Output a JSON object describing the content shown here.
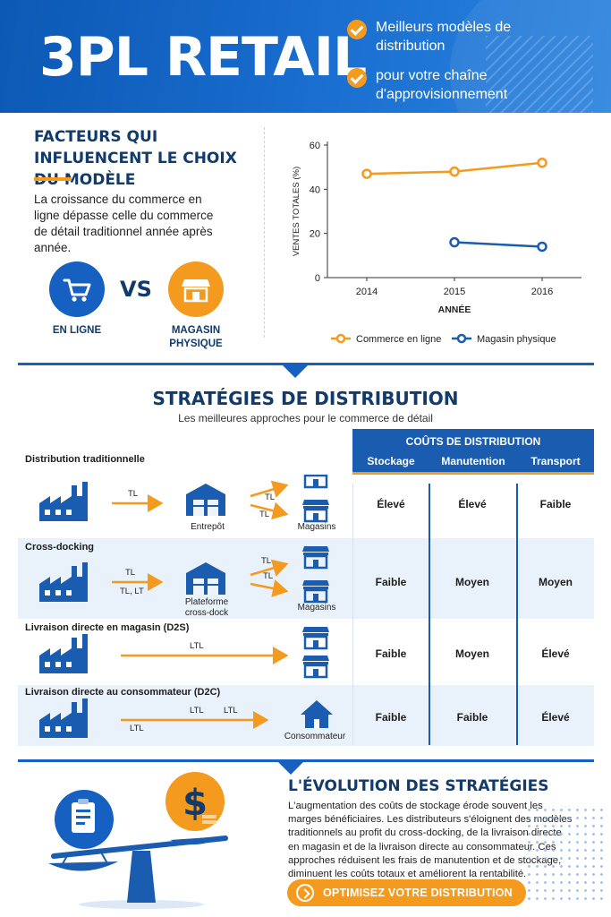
{
  "header": {
    "title": "3PL RETAIL",
    "bullets": [
      "Meilleurs modèles de distribution",
      "pour votre chaîne d'approvisionnement"
    ]
  },
  "factors": {
    "title": "FACTEURS QUI INFLUENCENT LE CHOIX DU MODÈLE",
    "text": "La croissance du commerce en ligne dépasse celle du commerce de détail traditionnel année après année.",
    "vs": "VS",
    "online_label": "EN LIGNE",
    "store_label": "MAGASIN PHYSIQUE",
    "icons": [
      "cart-icon",
      "storefront-icon"
    ]
  },
  "chart_data": {
    "type": "line",
    "title": "",
    "xlabel": "ANNÉE",
    "ylabel": "VENTES TOTALES (%)",
    "ylim": [
      0,
      60
    ],
    "yticks": [
      0,
      20,
      40,
      60
    ],
    "x": [
      2014,
      2015,
      2016
    ],
    "series": [
      {
        "name": "Commerce en ligne",
        "color": "#f49a1e",
        "x": [
          2014,
          2015,
          2016
        ],
        "values": [
          47,
          48,
          52
        ]
      },
      {
        "name": "Magasin physique",
        "color": "#1a5cb0",
        "x": [
          2015,
          2016
        ],
        "values": [
          16,
          14
        ]
      }
    ],
    "legend": "bottom",
    "grid": false
  },
  "strategies": {
    "title": "STRATÉGIES DE DISTRIBUTION",
    "subtitle": "Les meilleures approches pour le commerce de détail",
    "costs_title": "COÛTS DE DISTRIBUTION",
    "columns": [
      "Stockage",
      "Manutention",
      "Transport"
    ],
    "rows": [
      {
        "name": "Distribution traditionnelle",
        "labels": {
          "a1": "TL",
          "a2": "TL",
          "a3": "TL",
          "hub": "Entrepôt",
          "dest": "Magasins"
        },
        "costs": [
          "Élevé",
          "Élevé",
          "Faible"
        ]
      },
      {
        "name": "Cross-docking",
        "labels": {
          "a1": "TL",
          "a1b": "TL, LT",
          "a2": "TL",
          "a3": "TL",
          "hub": "Plateforme cross-dock",
          "dest": "Magasins"
        },
        "costs": [
          "Faible",
          "Moyen",
          "Moyen"
        ]
      },
      {
        "name": "Livraison directe en magasin (D2S)",
        "labels": {
          "a1": "LTL"
        },
        "costs": [
          "Faible",
          "Moyen",
          "Élevé"
        ]
      },
      {
        "name": "Livraison directe au consommateur (D2C)",
        "labels": {
          "a1": "LTL",
          "a1b": "LTL",
          "a1c": "LTL",
          "dest": "Consommateur"
        },
        "costs": [
          "Faible",
          "Faible",
          "Élevé"
        ]
      }
    ]
  },
  "evolution": {
    "title": "L'ÉVOLUTION DES STRATÉGIES",
    "text": "L'augmentation des coûts de stockage érode souvent les marges bénéficiaires. Les distributeurs s'éloignent des modèles traditionnels au profit du cross-docking, de la livraison directe en magasin et de la livraison directe au consommateur. Ces approches réduisent les frais de manutention et de stockage, diminuent les coûts totaux et améliorent la rentabilité.",
    "cta": "OPTIMISEZ VOTRE DISTRIBUTION",
    "coin_symbol": "$"
  },
  "colors": {
    "primary": "#1560c0",
    "accent": "#f49a1e",
    "dark": "#123a6b",
    "band": "#e9f1fa"
  }
}
